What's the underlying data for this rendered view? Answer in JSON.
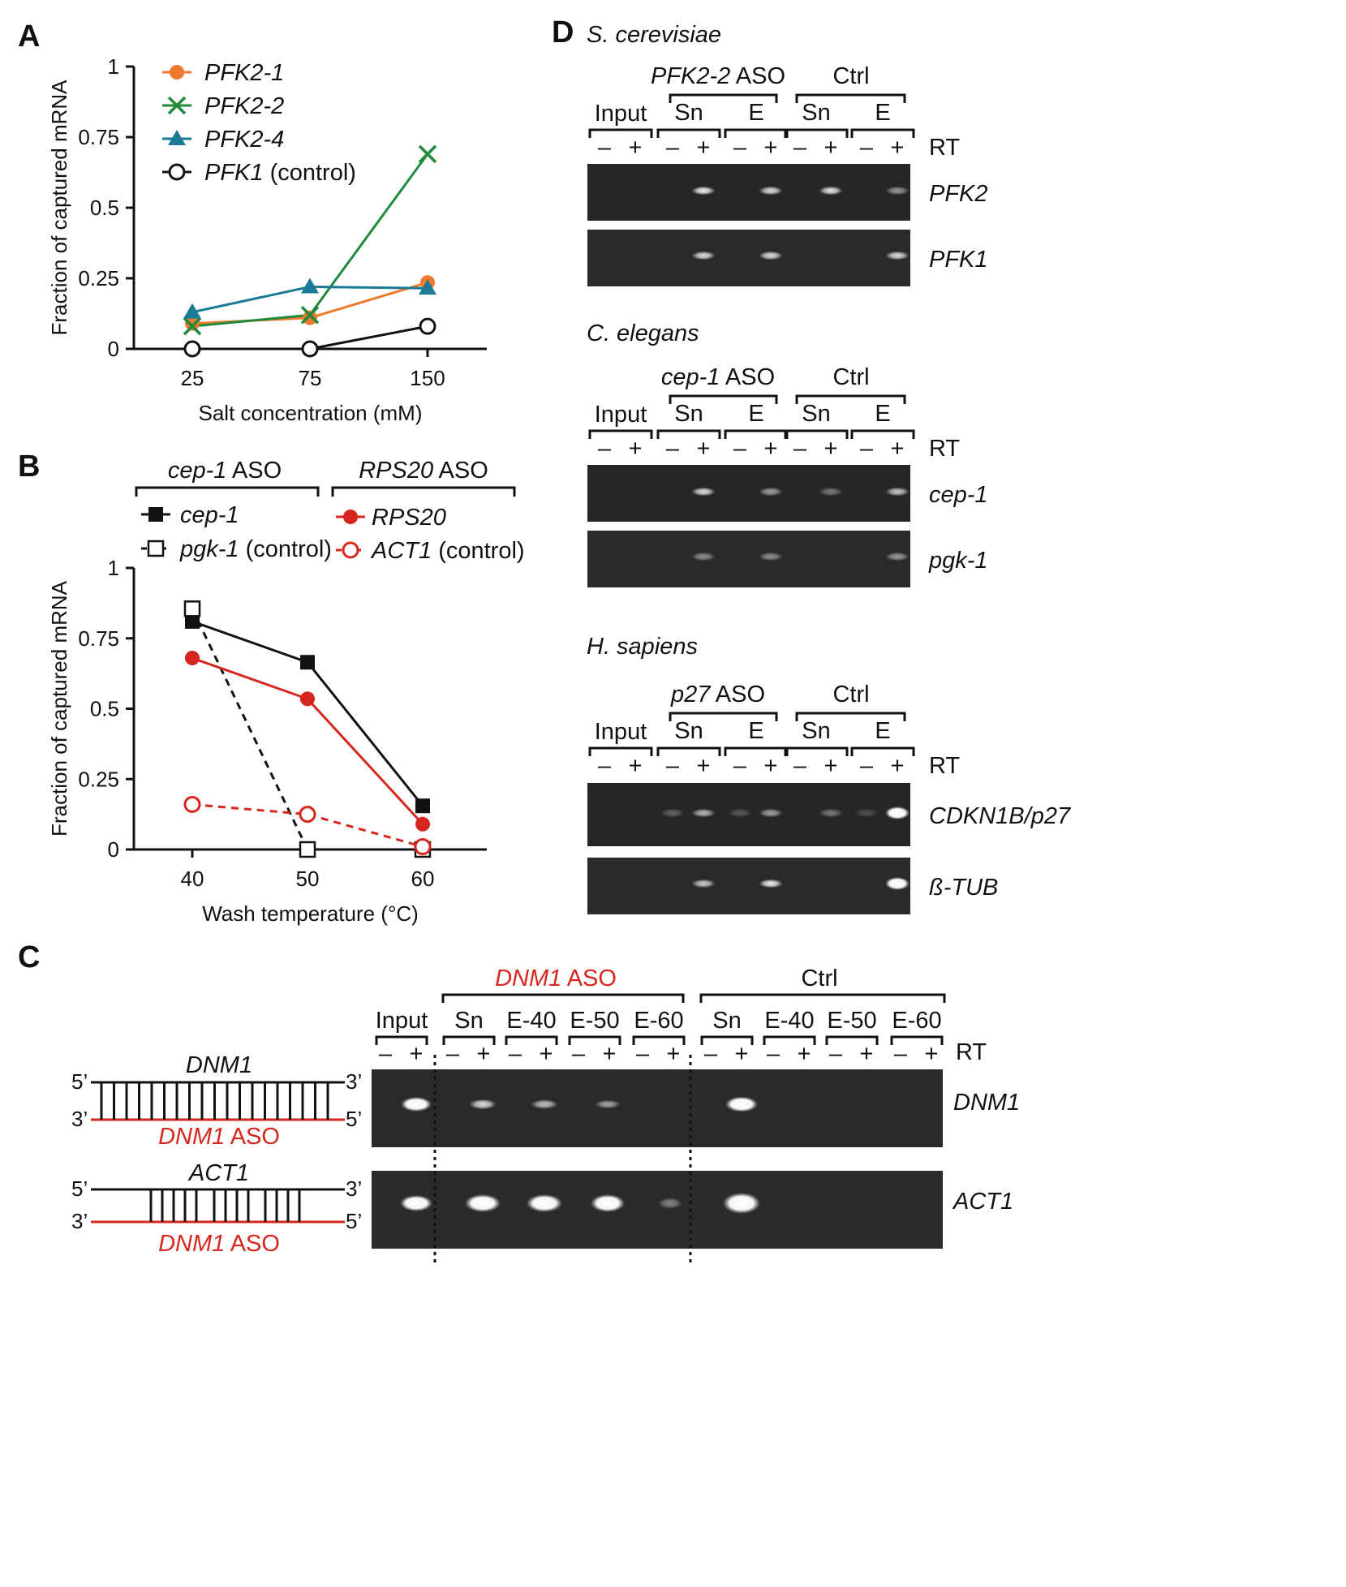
{
  "colors": {
    "orange": "#ef7a2e",
    "green": "#1f8a3a",
    "teal": "#1b7a96",
    "black": "#111111",
    "red": "#d7261e",
    "gel": "#2b2b2b"
  },
  "panels": {
    "a": "A",
    "b": "B",
    "c": "C",
    "d": "D"
  },
  "chart_data": [
    {
      "id": "A",
      "type": "line",
      "x": [
        25,
        75,
        150
      ],
      "xlabel": "Salt concentration (mM)",
      "ylabel": "Fraction of captured  mRNA",
      "ylim": [
        0,
        1
      ],
      "yticks": [
        "0",
        "0.25",
        "0.5",
        "0.75",
        "1"
      ],
      "ytick_values": [
        0,
        0.25,
        0.5,
        0.75,
        1
      ],
      "xticks": [
        "25",
        "75",
        "150"
      ],
      "series": [
        {
          "name": "PFK2-1",
          "suffix": "",
          "values": [
            0.09,
            0.11,
            0.235
          ],
          "color": "#ef7a2e",
          "marker": "circle-filled",
          "dash": false
        },
        {
          "name": "PFK2-2",
          "suffix": "",
          "values": [
            0.08,
            0.12,
            0.69
          ],
          "color": "#1f8a3a",
          "marker": "x",
          "dash": false
        },
        {
          "name": "PFK2-4",
          "suffix": "",
          "values": [
            0.13,
            0.22,
            0.215
          ],
          "color": "#1b7a96",
          "marker": "triangle",
          "dash": false
        },
        {
          "name": "PFK1",
          "suffix": " (control)",
          "values": [
            0.0,
            0.0,
            0.08
          ],
          "color": "#111111",
          "marker": "circle-open",
          "dash": false
        }
      ]
    },
    {
      "id": "B",
      "type": "line",
      "x": [
        40,
        50,
        60
      ],
      "xlabel": "Wash temperature (°C)",
      "ylabel": "Fraction of captured  mRNA",
      "ylim": [
        0,
        1
      ],
      "yticks": [
        "0",
        "0.25",
        "0.5",
        "0.75",
        "1"
      ],
      "ytick_values": [
        0,
        0.25,
        0.5,
        0.75,
        1
      ],
      "xticks": [
        "40",
        "50",
        "60"
      ],
      "group_labels": [
        {
          "gene": "cep-1",
          "rest": " ASO"
        },
        {
          "gene": "RPS20",
          "rest": "  ASO"
        }
      ],
      "series": [
        {
          "name": "cep-1",
          "suffix": "",
          "values": [
            0.81,
            0.665,
            0.155
          ],
          "color": "#111111",
          "marker": "square-filled",
          "dash": false
        },
        {
          "name": "pgk-1",
          "suffix": " (control)",
          "values": [
            0.855,
            0.0,
            0.0
          ],
          "color": "#111111",
          "marker": "square-open",
          "dash": true
        },
        {
          "name": "RPS20",
          "suffix": "",
          "values": [
            0.68,
            0.535,
            0.09
          ],
          "color": "#d7261e",
          "marker": "circle-filled",
          "dash": false
        },
        {
          "name": "ACT1",
          "suffix": " (control)",
          "values": [
            0.16,
            0.125,
            0.01
          ],
          "color": "#d7261e",
          "marker": "circle-open",
          "dash": true
        }
      ]
    }
  ],
  "panel_c": {
    "duplex_top": {
      "title": "DNM1",
      "aso": "DNM1",
      "aso_rest": " ASO",
      "p5": "5’",
      "p3": "3’"
    },
    "duplex_bottom": {
      "title": "ACT1",
      "aso": "DNM1",
      "aso_rest": " ASO",
      "p5": "5’",
      "p3": "3’"
    },
    "group1": {
      "gene": "DNM1",
      "rest": " ASO"
    },
    "group2": "Ctrl",
    "lanes": [
      "Input",
      "Sn",
      "E-40",
      "E-50",
      "E-60",
      "Sn",
      "E-40",
      "E-50",
      "E-60"
    ],
    "minus": "–",
    "plus": "+",
    "rt": "RT",
    "gels": [
      "DNM1",
      "ACT1"
    ]
  },
  "panel_d": [
    {
      "organism": "S. cerevisiae",
      "aso_gene": "PFK2-2",
      "aso_rest": " ASO",
      "ctrl": "Ctrl",
      "input": "Input",
      "sn": "Sn",
      "e": "E",
      "minus": "–",
      "plus": "+",
      "rt": "RT",
      "gels": [
        "PFK2",
        "PFK1"
      ]
    },
    {
      "organism": "C. elegans",
      "aso_gene": "cep-1",
      "aso_rest": " ASO",
      "ctrl": "Ctrl",
      "input": "Input",
      "sn": "Sn",
      "e": "E",
      "minus": "–",
      "plus": "+",
      "rt": "RT",
      "gels": [
        "cep-1",
        "pgk-1"
      ]
    },
    {
      "organism": "H. sapiens",
      "aso_gene": "p27",
      "aso_rest": " ASO",
      "ctrl": "Ctrl",
      "input": "Input",
      "sn": "Sn",
      "e": "E",
      "minus": "–",
      "plus": "+",
      "rt": "RT",
      "gels": [
        "CDKN1B/p27",
        "ß-TUB"
      ]
    }
  ]
}
